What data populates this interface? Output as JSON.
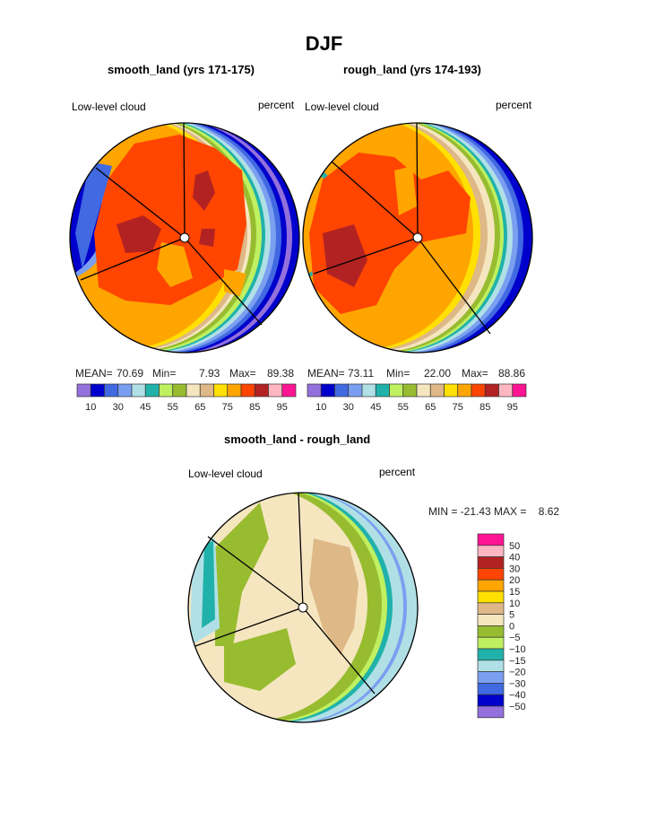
{
  "title": "DJF",
  "variable": "Low-level cloud",
  "units": "percent",
  "chart_data": [
    {
      "type": "heatmap",
      "projection": "polar",
      "title": "smooth_land (yrs 171-175)",
      "label_left": "Low-level cloud",
      "label_right": "percent",
      "stats": {
        "mean_label": "MEAN=",
        "mean": "70.69",
        "min_label": "Min=",
        "min": "7.93",
        "max_label": "Max=",
        "max": "89.38"
      },
      "colorbar": {
        "orientation": "horizontal",
        "tick_labels": [
          "10",
          "30",
          "45",
          "55",
          "65",
          "75",
          "85",
          "95"
        ],
        "colors": [
          "#9370db",
          "#0000cd",
          "#4169e1",
          "#7b9ff0",
          "#b0e0e6",
          "#20b2aa",
          "#bff060",
          "#98bc30",
          "#f5e6c0",
          "#deb887",
          "#ffe000",
          "#ffa500",
          "#ff4500",
          "#b22222",
          "#ffb6c1",
          "#ff1493"
        ]
      }
    },
    {
      "type": "heatmap",
      "projection": "polar",
      "title": "rough_land (yrs 174-193)",
      "label_left": "Low-level cloud",
      "label_right": "percent",
      "stats": {
        "mean_label": "MEAN=",
        "mean": "73.11",
        "min_label": "Min=",
        "min": "22.00",
        "max_label": "Max=",
        "max": "88.86"
      },
      "colorbar": {
        "orientation": "horizontal",
        "tick_labels": [
          "10",
          "30",
          "45",
          "55",
          "65",
          "75",
          "85",
          "95"
        ],
        "colors": [
          "#9370db",
          "#0000cd",
          "#4169e1",
          "#7b9ff0",
          "#b0e0e6",
          "#20b2aa",
          "#bff060",
          "#98bc30",
          "#f5e6c0",
          "#deb887",
          "#ffe000",
          "#ffa500",
          "#ff4500",
          "#b22222",
          "#ffb6c1",
          "#ff1493"
        ]
      }
    },
    {
      "type": "heatmap",
      "projection": "polar",
      "title": "smooth_land - rough_land",
      "label_left": "Low-level cloud",
      "label_right": "percent",
      "stats": {
        "text": "MIN = -21.43 MAX =    8.62",
        "min": "-21.43",
        "max": "8.62"
      },
      "colorbar": {
        "orientation": "vertical",
        "tick_labels": [
          "50",
          "40",
          "30",
          "20",
          "15",
          "10",
          "5",
          "0",
          "−5",
          "−10",
          "−15",
          "−20",
          "−30",
          "−40",
          "−50"
        ],
        "colors": [
          "#ff1493",
          "#ffb6c1",
          "#b22222",
          "#ff4500",
          "#ffa500",
          "#ffe000",
          "#deb887",
          "#f5e6c0",
          "#98bc30",
          "#bff060",
          "#20b2aa",
          "#b0e0e6",
          "#7b9ff0",
          "#4169e1",
          "#0000cd",
          "#9370db"
        ]
      }
    }
  ]
}
